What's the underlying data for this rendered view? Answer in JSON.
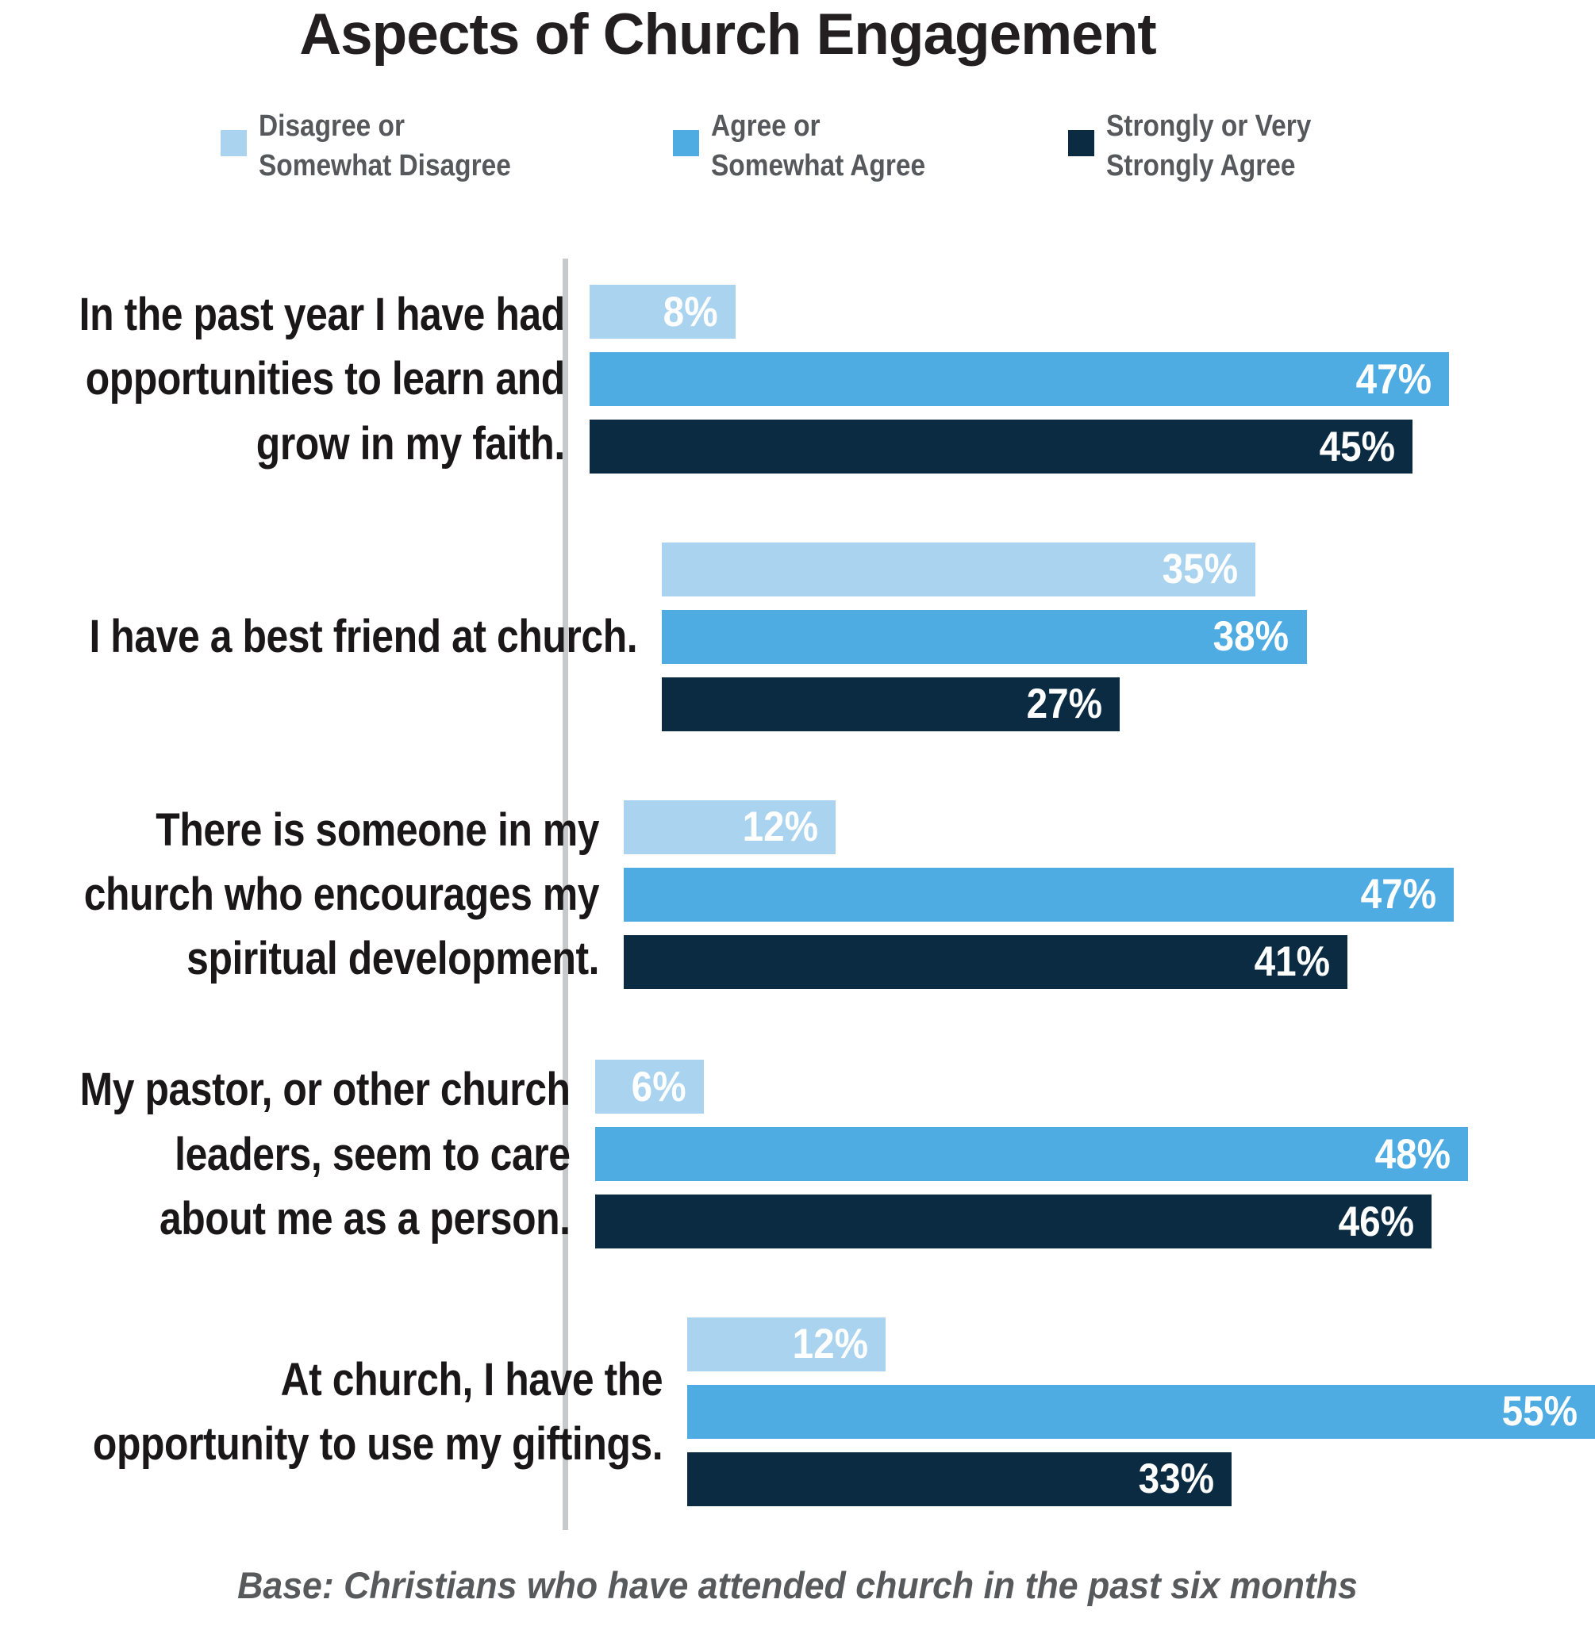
{
  "title": "Aspects of Church Engagement",
  "legend": {
    "items": [
      {
        "label": "Disagree or\nSomewhat Disagree",
        "color": "#A9D3EF"
      },
      {
        "label": "Agree or\nSomewhat Agree",
        "color": "#4FACE2"
      },
      {
        "label": "Strongly or Very\nStrongly Agree",
        "color": "#0B2B42"
      }
    ]
  },
  "footer": "Base: Christians who have attended church in the past six months",
  "colors": {
    "light_blue": "#A9D3EF",
    "medium_blue": "#4FACE2",
    "dark_navy": "#0B2B42",
    "axis_gray": "#C8C9CB",
    "text_dark": "#231F20",
    "text_gray": "#58595B",
    "bar_label_white": "#FFFFFF"
  },
  "chart_data": {
    "type": "bar",
    "orientation": "horizontal",
    "title": "Aspects of Church Engagement",
    "note": "Base: Christians who have attended church in the past six months",
    "legend_position": "top",
    "grid": false,
    "value_suffix": "%",
    "xlim": [
      0,
      55
    ],
    "categories": [
      "In the past year I have had\nopportunities to learn and\ngrow in my faith.",
      "I have a best friend at church.",
      "There is someone in my\nchurch who encourages my\nspiritual development.",
      "My pastor, or other church\nleaders, seem to care\nabout me as a person.",
      "At church, I have the\nopportunity to use my giftings."
    ],
    "series": [
      {
        "name": "Disagree or Somewhat Disagree",
        "color": "#A9D3EF",
        "values": [
          8,
          35,
          12,
          6,
          12
        ]
      },
      {
        "name": "Agree or Somewhat Agree",
        "color": "#4FACE2",
        "values": [
          47,
          38,
          47,
          48,
          55
        ]
      },
      {
        "name": "Strongly or Very Strongly Agree",
        "color": "#0B2B42",
        "values": [
          45,
          27,
          41,
          46,
          33
        ]
      }
    ]
  }
}
